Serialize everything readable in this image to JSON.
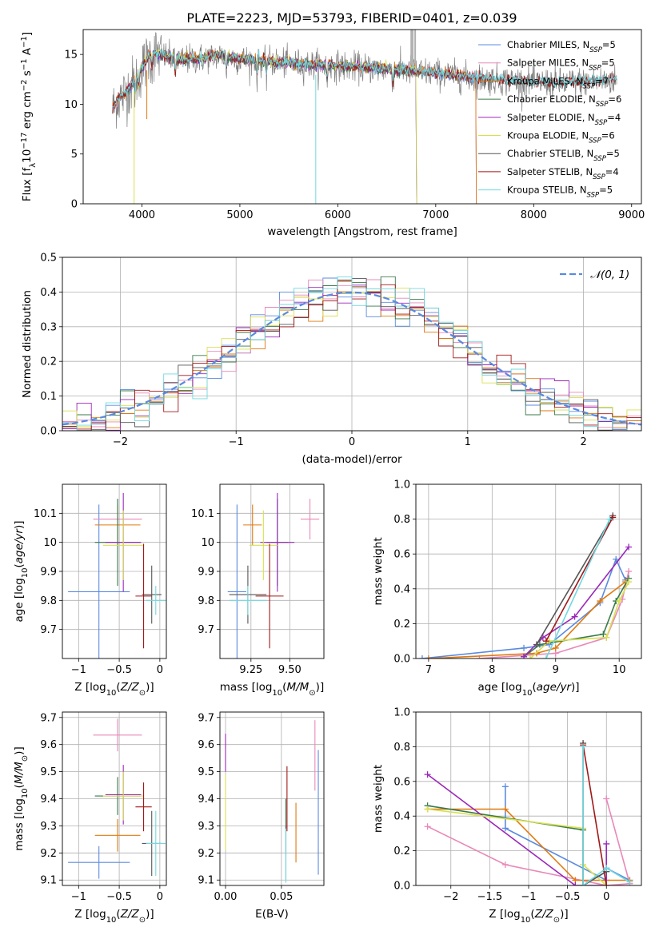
{
  "title": "PLATE=2223, MJD=53793, FIBERID=0401, z=0.039",
  "colors": {
    "Chabrier MILES": "#5a8ae0",
    "Salpeter MILES": "#e888b8",
    "Kroupa MILES": "#e07a10",
    "Chabrier ELODIE": "#3a7a4a",
    "Salpeter ELODIE": "#9a28b8",
    "Kroupa ELODIE": "#d8e050",
    "Chabrier STELIB": "#555555",
    "Salpeter STELIB": "#a01818",
    "Kroupa STELIB": "#70d8e0",
    "data": "#808080",
    "gaussian": "#5a8ae0"
  },
  "chart_data": [
    {
      "id": "spectrum",
      "type": "line",
      "xlabel": "wavelength [Angstrom, rest frame]",
      "ylabel": "Flux [f_λ 10^-17 erg cm^-2 s^-1 A^-1]",
      "xlim": [
        3400,
        9100
      ],
      "ylim": [
        0,
        17.5
      ],
      "xticks": [
        4000,
        5000,
        6000,
        7000,
        8000,
        9000
      ],
      "yticks": [
        0,
        5,
        10,
        15
      ],
      "legend_position": "top-right",
      "legend": [
        {
          "series": "Chabrier MILES",
          "label": "Chabrier MILES, N",
          "sub": "SSP",
          "tail": "=5"
        },
        {
          "series": "Salpeter MILES",
          "label": "Salpeter MILES, N",
          "sub": "SSP",
          "tail": "=5"
        },
        {
          "series": "Kroupa MILES",
          "label": "Kroupa MILES, N",
          "sub": "SSP",
          "tail": "=7"
        },
        {
          "series": "Chabrier ELODIE",
          "label": "Chabrier ELODIE, N",
          "sub": "SSP",
          "tail": "=6"
        },
        {
          "series": "Salpeter ELODIE",
          "label": "Salpeter ELODIE, N",
          "sub": "SSP",
          "tail": "=4"
        },
        {
          "series": "Kroupa ELODIE",
          "label": "Kroupa ELODIE, N",
          "sub": "SSP",
          "tail": "=6"
        },
        {
          "series": "Chabrier STELIB",
          "label": "Chabrier STELIB, N",
          "sub": "SSP",
          "tail": "=5"
        },
        {
          "series": "Salpeter STELIB",
          "label": "Salpeter STELIB, N",
          "sub": "SSP",
          "tail": "=4"
        },
        {
          "series": "Kroupa STELIB",
          "label": "Kroupa STELIB, N",
          "sub": "SSP",
          "tail": "=5"
        }
      ],
      "continuum": {
        "x": [
          3700,
          3800,
          3900,
          4000,
          4100,
          4200,
          4400,
          4600,
          4800,
          5000,
          5300,
          5600,
          5900,
          6200,
          6500,
          6800,
          7100,
          7400,
          7700,
          8000,
          8300,
          8600,
          8850
        ],
        "y": [
          10.2,
          10.8,
          12.0,
          13.6,
          15.2,
          14.9,
          14.4,
          14.6,
          14.9,
          14.5,
          14.3,
          14.0,
          13.9,
          13.7,
          13.5,
          13.3,
          13.0,
          12.6,
          12.4,
          12.2,
          12.1,
          12.3,
          12.4
        ]
      },
      "data_range": [
        3700,
        8850
      ],
      "model_ranges": {
        "Chabrier MILES": [
          3700,
          7410
        ],
        "Salpeter MILES": [
          3700,
          7410
        ],
        "Kroupa MILES": [
          3700,
          7410
        ],
        "Chabrier ELODIE": [
          3850,
          6800
        ],
        "Salpeter ELODIE": [
          3850,
          6800
        ],
        "Kroupa ELODIE": [
          3900,
          6800
        ],
        "Chabrier STELIB": [
          3700,
          8850
        ],
        "Salpeter STELIB": [
          3700,
          8850
        ],
        "Kroupa STELIB": [
          3700,
          8850
        ]
      }
    },
    {
      "id": "residuals",
      "type": "line",
      "xlabel": "(data-model)/error",
      "ylabel": "Normed distribution",
      "xlim": [
        -2.5,
        2.5
      ],
      "ylim": [
        0,
        0.5
      ],
      "xticks": [
        -2,
        -1,
        0,
        1,
        2
      ],
      "yticks": [
        0.0,
        0.1,
        0.2,
        0.3,
        0.4,
        0.5
      ],
      "legend": "𝒩(0, 1)",
      "legend_position": "top-right",
      "bins": 40
    },
    {
      "id": "age-vs-Z",
      "type": "scatter",
      "xlabel": "Z [log10(Z/Z⊙)]",
      "ylabel": "age  [log10(age/yr)]",
      "xlim": [
        -1.2,
        0.08
      ],
      "ylim": [
        9.6,
        10.2
      ],
      "xticks": [
        -1.0,
        -0.5,
        0.0
      ],
      "yticks": [
        9.7,
        9.8,
        9.9,
        10.0,
        10.1
      ],
      "points": [
        {
          "series": "Chabrier MILES",
          "x": -0.75,
          "y": 9.83,
          "xerr": 0.38,
          "yerr": 0.3
        },
        {
          "series": "Salpeter MILES",
          "x": -0.52,
          "y": 10.08,
          "xerr": 0.3,
          "yerr": 0.07
        },
        {
          "series": "Kroupa MILES",
          "x": -0.52,
          "y": 10.06,
          "xerr": 0.28,
          "yerr": 0.07
        },
        {
          "series": "Chabrier ELODIE",
          "x": -0.52,
          "y": 10.0,
          "xerr": 0.28,
          "yerr": 0.15
        },
        {
          "series": "Salpeter ELODIE",
          "x": -0.45,
          "y": 10.0,
          "xerr": 0.22,
          "yerr": 0.17
        },
        {
          "series": "Kroupa ELODIE",
          "x": -0.45,
          "y": 9.99,
          "xerr": 0.25,
          "yerr": 0.12
        },
        {
          "series": "Chabrier STELIB",
          "x": -0.1,
          "y": 9.82,
          "xerr": 0.12,
          "yerr": 0.1
        },
        {
          "series": "Salpeter STELIB",
          "x": -0.2,
          "y": 9.815,
          "xerr": 0.1,
          "yerr": 0.18
        },
        {
          "series": "Kroupa STELIB",
          "x": -0.05,
          "y": 9.8,
          "xerr": 0.12,
          "yerr": 0.05
        }
      ]
    },
    {
      "id": "age-vs-mass",
      "type": "scatter",
      "xlabel": "mass [log10(M/M⊙)]",
      "ylabel": "",
      "xlim": [
        9.05,
        9.72
      ],
      "ylim": [
        9.6,
        10.2
      ],
      "xticks": [
        9.25,
        9.5
      ],
      "xticklabels": [
        "9.25",
        "9.50"
      ],
      "yticks": [
        9.7,
        9.8,
        9.9,
        10.0,
        10.1
      ],
      "points": [
        {
          "series": "Chabrier MILES",
          "x": 9.16,
          "y": 9.83,
          "xerr": 0.06,
          "yerr": 0.3
        },
        {
          "series": "Salpeter MILES",
          "x": 9.63,
          "y": 10.08,
          "xerr": 0.06,
          "yerr": 0.07
        },
        {
          "series": "Kroupa MILES",
          "x": 9.26,
          "y": 10.06,
          "xerr": 0.06,
          "yerr": 0.07
        },
        {
          "series": "Chabrier ELODIE",
          "x": 9.42,
          "y": 10.0,
          "xerr": 0.07,
          "yerr": 0.15
        },
        {
          "series": "Salpeter ELODIE",
          "x": 9.42,
          "y": 10.0,
          "xerr": 0.11,
          "yerr": 0.17
        },
        {
          "series": "Kroupa ELODIE",
          "x": 9.33,
          "y": 9.99,
          "xerr": 0.09,
          "yerr": 0.12
        },
        {
          "series": "Chabrier STELIB",
          "x": 9.23,
          "y": 9.82,
          "xerr": 0.12,
          "yerr": 0.1
        },
        {
          "series": "Salpeter STELIB",
          "x": 9.37,
          "y": 9.815,
          "xerr": 0.09,
          "yerr": 0.18
        },
        {
          "series": "Kroupa STELIB",
          "x": 9.23,
          "y": 9.8,
          "xerr": 0.12,
          "yerr": 0.05
        }
      ]
    },
    {
      "id": "weight-vs-age",
      "type": "line",
      "xlabel": "age  [log10(age/yr)]",
      "ylabel": "mass weight",
      "xlim": [
        6.8,
        10.35
      ],
      "ylim": [
        0,
        1.0
      ],
      "xticks": [
        7,
        8,
        9,
        10
      ],
      "yticks": [
        0.0,
        0.2,
        0.4,
        0.6,
        0.8,
        1.0
      ],
      "series": [
        {
          "name": "Chabrier MILES",
          "x": [
            6.9,
            8.5,
            8.9,
            9.7,
            9.95,
            10.1
          ],
          "y": [
            0.0,
            0.06,
            0.08,
            0.32,
            0.57,
            0.45
          ]
        },
        {
          "name": "Salpeter MILES",
          "x": [
            7.8,
            8.6,
            9.0,
            9.8,
            10.05,
            10.15
          ],
          "y": [
            0.0,
            0.02,
            0.03,
            0.12,
            0.34,
            0.5
          ]
        },
        {
          "name": "Kroupa MILES",
          "x": [
            7.0,
            8.7,
            9.0,
            9.7,
            10.1
          ],
          "y": [
            0.0,
            0.03,
            0.06,
            0.33,
            0.44
          ]
        },
        {
          "name": "Chabrier ELODIE",
          "x": [
            8.5,
            8.75,
            9.75,
            9.95,
            10.15
          ],
          "y": [
            0.01,
            0.08,
            0.14,
            0.33,
            0.46
          ]
        },
        {
          "name": "Salpeter ELODIE",
          "x": [
            8.5,
            8.8,
            9.3,
            10.15
          ],
          "y": [
            0.01,
            0.12,
            0.24,
            0.64
          ]
        },
        {
          "name": "Kroupa ELODIE",
          "x": [
            8.6,
            8.9,
            9.8,
            10.0,
            10.15
          ],
          "y": [
            0.0,
            0.1,
            0.12,
            0.33,
            0.44
          ]
        },
        {
          "name": "Chabrier STELIB",
          "x": [
            8.7,
            9.9
          ],
          "y": [
            0.08,
            0.82
          ]
        },
        {
          "name": "Salpeter STELIB",
          "x": [
            8.85,
            9.9
          ],
          "y": [
            0.1,
            0.81
          ]
        },
        {
          "name": "Kroupa STELIB",
          "x": [
            8.85,
            9.85
          ],
          "y": [
            0.0,
            0.8
          ]
        }
      ]
    },
    {
      "id": "mass-vs-Z",
      "type": "scatter",
      "xlabel": "Z [log10(Z/Z⊙)]",
      "ylabel": "mass [log10(M/M⊙)]",
      "xlim": [
        -1.2,
        0.08
      ],
      "ylim": [
        9.08,
        9.72
      ],
      "xticks": [
        -1.0,
        -0.5,
        0.0
      ],
      "yticks": [
        9.1,
        9.2,
        9.3,
        9.4,
        9.5,
        9.6,
        9.7
      ],
      "points": [
        {
          "series": "Chabrier MILES",
          "x": -0.75,
          "y": 9.165,
          "xerr": 0.38,
          "yerr": 0.06
        },
        {
          "series": "Salpeter MILES",
          "x": -0.52,
          "y": 9.635,
          "xerr": 0.3,
          "yerr": 0.06
        },
        {
          "series": "Kroupa MILES",
          "x": -0.52,
          "y": 9.265,
          "xerr": 0.28,
          "yerr": 0.06
        },
        {
          "series": "Chabrier ELODIE",
          "x": -0.52,
          "y": 9.41,
          "xerr": 0.28,
          "yerr": 0.07
        },
        {
          "series": "Salpeter ELODIE",
          "x": -0.45,
          "y": 9.415,
          "xerr": 0.22,
          "yerr": 0.11
        },
        {
          "series": "Kroupa ELODIE",
          "x": -0.45,
          "y": 9.41,
          "xerr": 0.25,
          "yerr": 0.09
        },
        {
          "series": "Chabrier STELIB",
          "x": -0.1,
          "y": 9.235,
          "xerr": 0.12,
          "yerr": 0.12
        },
        {
          "series": "Salpeter STELIB",
          "x": -0.2,
          "y": 9.37,
          "xerr": 0.1,
          "yerr": 0.09
        },
        {
          "series": "Kroupa STELIB",
          "x": -0.05,
          "y": 9.235,
          "xerr": 0.12,
          "yerr": 0.12
        }
      ]
    },
    {
      "id": "mass-vs-ebv",
      "type": "scatter",
      "xlabel": "E(B-V)",
      "ylabel": "",
      "xlim": [
        -0.005,
        0.088
      ],
      "ylim": [
        9.08,
        9.72
      ],
      "xticks": [
        0.0,
        0.05
      ],
      "xticklabels": [
        "0.00",
        "0.05"
      ],
      "yticks": [
        9.1,
        9.2,
        9.3,
        9.4,
        9.5,
        9.6,
        9.7
      ],
      "points": [
        {
          "series": "Chabrier MILES",
          "x": 0.083,
          "y": 9.35,
          "xerr": 0,
          "yerr": 0.23
        },
        {
          "series": "Salpeter MILES",
          "x": 0.08,
          "y": 9.56,
          "xerr": 0,
          "yerr": 0.13
        },
        {
          "series": "Kroupa MILES",
          "x": 0.063,
          "y": 9.275,
          "xerr": 0,
          "yerr": 0.11
        },
        {
          "series": "Chabrier ELODIE",
          "x": 0.054,
          "y": 9.3,
          "xerr": 0,
          "yerr": 0.1
        },
        {
          "series": "Salpeter ELODIE",
          "x": 0.0,
          "y": 9.57,
          "xerr": 0,
          "yerr": 0.07
        },
        {
          "series": "Kroupa ELODIE",
          "x": 0.0,
          "y": 9.35,
          "xerr": 0,
          "yerr": 0.14
        },
        {
          "series": "Chabrier STELIB",
          "x": 0.054,
          "y": 9.2,
          "xerr": 0,
          "yerr": 0.1
        },
        {
          "series": "Salpeter STELIB",
          "x": 0.055,
          "y": 9.4,
          "xerr": 0,
          "yerr": 0.12
        },
        {
          "series": "Kroupa STELIB",
          "x": 0.054,
          "y": 9.19,
          "xerr": 0,
          "yerr": 0.1
        }
      ]
    },
    {
      "id": "weight-vs-Z",
      "type": "line",
      "xlabel": "Z [log10(Z/Z⊙)]",
      "ylabel": "mass weight",
      "xlim": [
        -2.45,
        0.45
      ],
      "ylim": [
        0,
        1.0
      ],
      "xticks": [
        -2.0,
        -1.5,
        -1.0,
        -0.5,
        0.0
      ],
      "yticks": [
        0.0,
        0.2,
        0.4,
        0.6,
        0.8,
        1.0
      ],
      "series": [
        {
          "name": "Chabrier MILES",
          "x": [
            -1.3,
            -1.3,
            0.0,
            0.0,
            0.3
          ],
          "y": [
            0.57,
            0.33,
            0.03,
            0.1,
            0.03
          ]
        },
        {
          "name": "Salpeter MILES",
          "x": [
            -2.3,
            -1.3,
            0.0,
            0.3,
            0.0
          ],
          "y": [
            0.34,
            0.12,
            0.0,
            0.01,
            0.5
          ]
        },
        {
          "name": "Kroupa MILES",
          "x": [
            -2.3,
            -1.3,
            -0.4,
            0.0,
            0.3
          ],
          "y": [
            0.44,
            0.44,
            0.03,
            0.03,
            0.03
          ]
        },
        {
          "name": "Chabrier ELODIE",
          "x": [
            -2.3,
            -0.3,
            -0.3,
            0.0
          ],
          "y": [
            0.46,
            0.32,
            0.0,
            0.08
          ]
        },
        {
          "name": "Salpeter ELODIE",
          "x": [
            -2.3,
            -0.4,
            0.0,
            0.0
          ],
          "y": [
            0.64,
            0.0,
            0.0,
            0.24
          ]
        },
        {
          "name": "Kroupa ELODIE",
          "x": [
            -2.3,
            -0.3,
            -0.3,
            0.0
          ],
          "y": [
            0.44,
            0.33,
            0.12,
            0.0
          ]
        },
        {
          "name": "Chabrier STELIB",
          "x": [
            -0.3,
            -0.3,
            0.0
          ],
          "y": [
            0.82,
            0.0,
            0.08
          ]
        },
        {
          "name": "Salpeter STELIB",
          "x": [
            -0.3,
            0.0
          ],
          "y": [
            0.81,
            0.0
          ]
        },
        {
          "name": "Kroupa STELIB",
          "x": [
            -0.3,
            -0.3,
            0.0,
            0.3
          ],
          "y": [
            0.8,
            0.0,
            0.1,
            0.02
          ]
        }
      ]
    }
  ]
}
